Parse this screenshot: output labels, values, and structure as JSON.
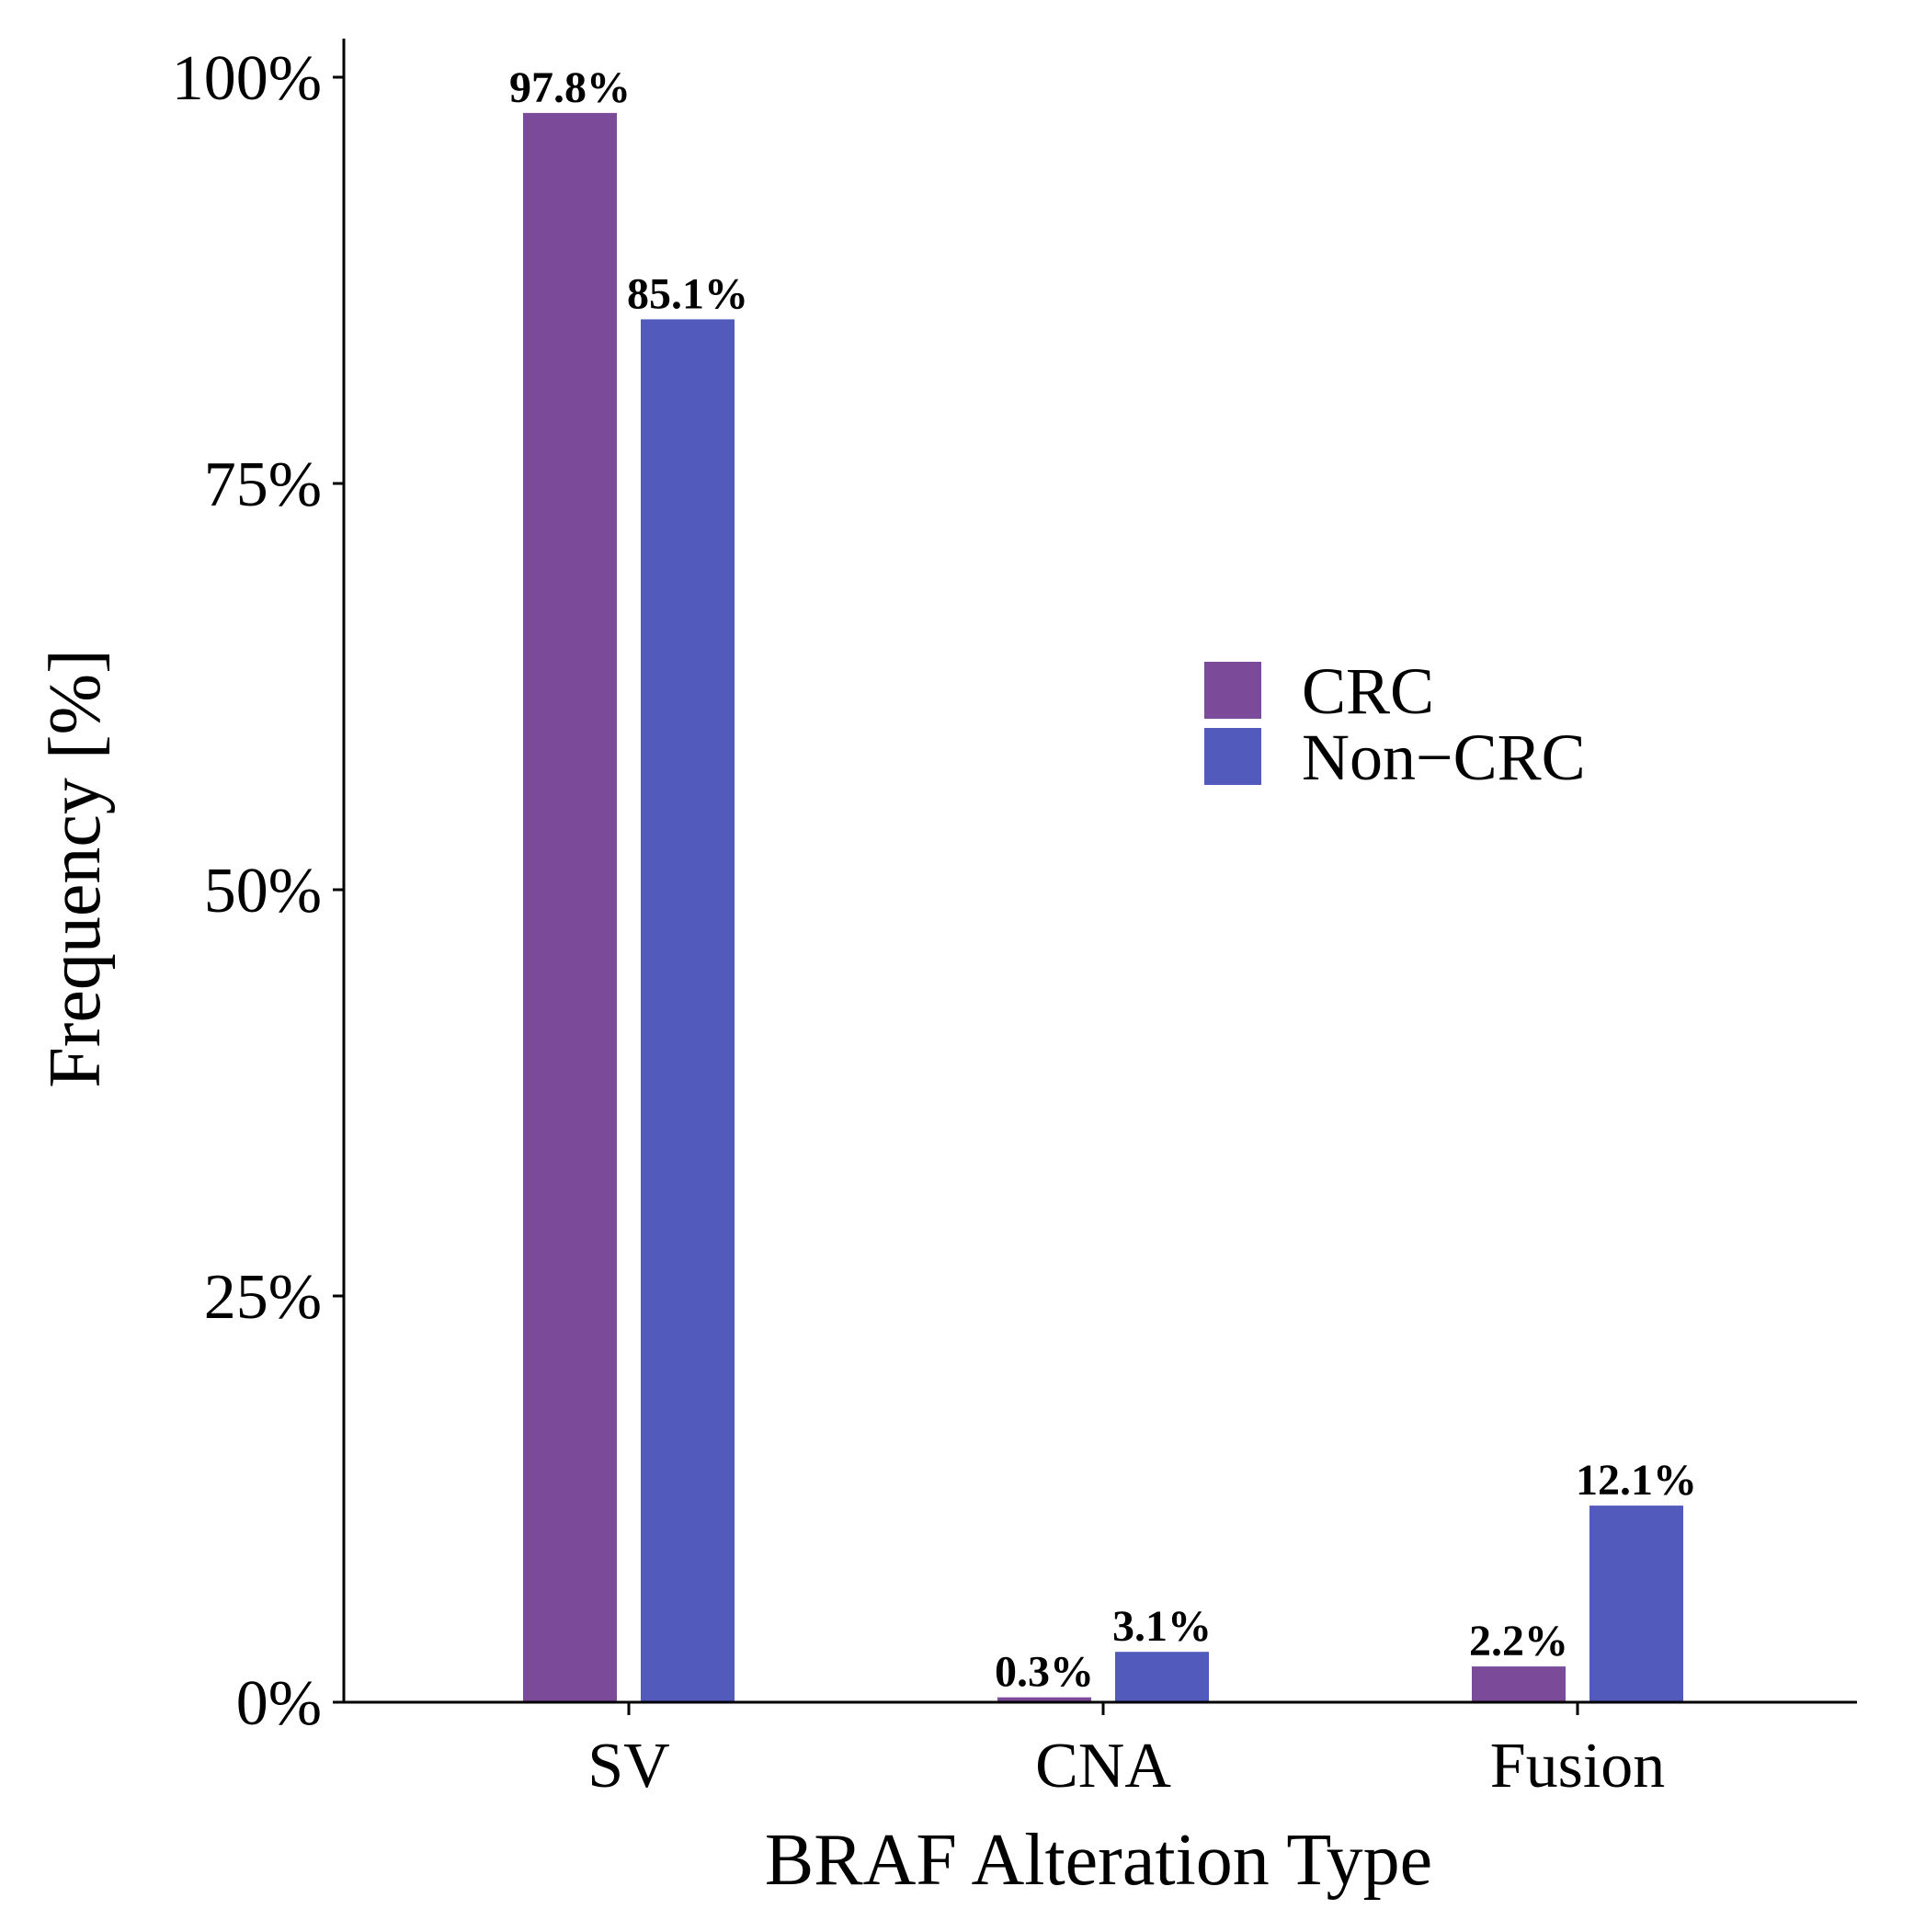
{
  "chart_data": {
    "type": "bar",
    "xlabel": "BRAF Alteration Type",
    "ylabel": "Frequency [%]",
    "ylim": [
      0,
      100
    ],
    "yticks": [
      0,
      25,
      50,
      75,
      100
    ],
    "ytick_labels": [
      "0%",
      "25%",
      "50%",
      "75%",
      "100%"
    ],
    "categories": [
      "SV",
      "CNA",
      "Fusion"
    ],
    "series": [
      {
        "name": "CRC",
        "color": "#7b4a98",
        "values": [
          97.8,
          0.3,
          2.2
        ],
        "labels": [
          "97.8%",
          "0.3%",
          "2.2%"
        ]
      },
      {
        "name": "Non−CRC",
        "color": "#525bbb",
        "values": [
          85.1,
          3.1,
          12.1
        ],
        "labels": [
          "85.1%",
          "3.1%",
          "12.1%"
        ]
      }
    ],
    "legend_position": "right-middle",
    "grid": false
  }
}
